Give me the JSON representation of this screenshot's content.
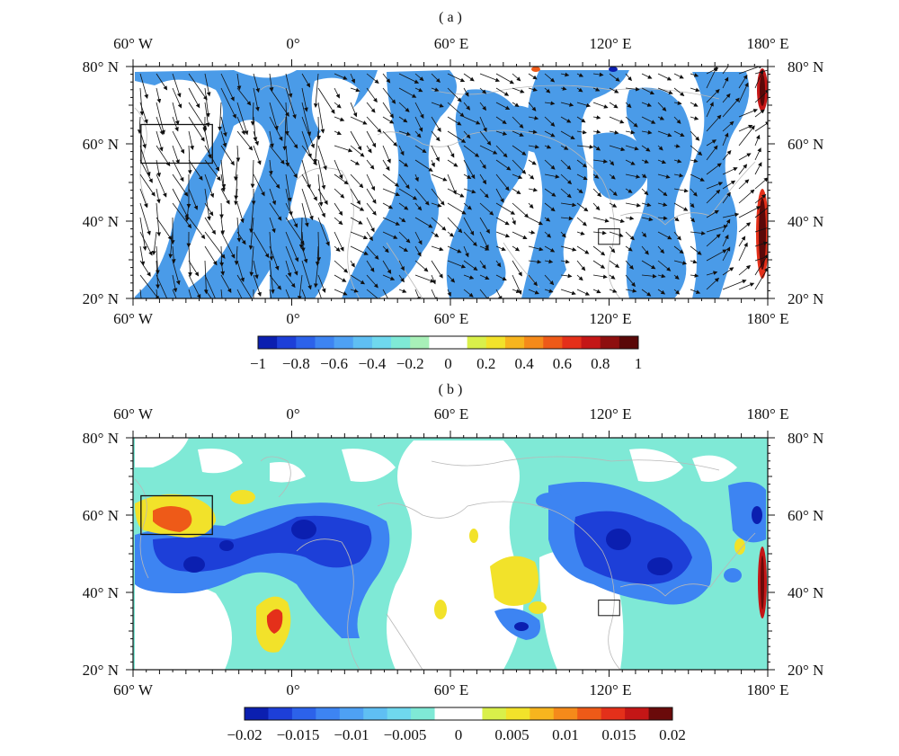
{
  "panels": [
    {
      "label": "( a )",
      "lon_labels": [
        "60° W",
        "0°",
        "60° E",
        "120° E",
        "180° E"
      ],
      "lat_labels": [
        "80° N",
        "60° N",
        "40° N",
        "20° N"
      ],
      "colorbar": {
        "ticks": [
          "-1",
          "-0.8",
          "-0.6",
          "-0.4",
          "-0.2",
          "0",
          "0.2",
          "0.4",
          "0.6",
          "0.8",
          "1"
        ],
        "colors": [
          "#0b1fb0",
          "#1d3fd8",
          "#2c62ea",
          "#3d84f2",
          "#4ea1f4",
          "#5fbff3",
          "#6fd8ee",
          "#7fe9d6",
          "#a8f0b8",
          "#ffffff",
          "#ffffff",
          "#d9f04a",
          "#f2e22a",
          "#f7b51e",
          "#f58a1a",
          "#ee5a18",
          "#e4301a",
          "#c41616",
          "#8e0f0f",
          "#5a0808"
        ]
      },
      "regions": [
        {
          "name": "box-north-atlantic",
          "lon": [
            -57,
            -30
          ],
          "lat": [
            55,
            65
          ]
        },
        {
          "name": "box-china",
          "lon": [
            116,
            124
          ],
          "lat": [
            34,
            38
          ]
        }
      ]
    },
    {
      "label": "( b )",
      "lon_labels": [
        "60° W",
        "0°",
        "60° E",
        "120° E",
        "180° E"
      ],
      "lat_labels": [
        "80° N",
        "60° N",
        "40° N",
        "20° N"
      ],
      "colorbar": {
        "ticks": [
          "-0.02",
          "-0.015",
          "-0.01",
          "-0.005",
          "0",
          "0.005",
          "0.01",
          "0.015",
          "0.02"
        ],
        "colors": [
          "#0b1fb0",
          "#1d3fd8",
          "#2c62ea",
          "#3d84f2",
          "#4ea1f4",
          "#5fbff3",
          "#6fd8ee",
          "#7fe9d6",
          "#ffffff",
          "#ffffff",
          "#d9f04a",
          "#f2e22a",
          "#f7b51e",
          "#f58a1a",
          "#ee5a18",
          "#e4301a",
          "#c41616",
          "#6a0a0a"
        ]
      },
      "regions": [
        {
          "name": "box-north-atlantic",
          "lon": [
            -57,
            -30
          ],
          "lat": [
            55,
            65
          ]
        },
        {
          "name": "box-china",
          "lon": [
            116,
            124
          ],
          "lat": [
            34,
            38
          ]
        }
      ]
    }
  ],
  "map_extent": {
    "lon": [
      -60,
      180
    ],
    "lat": [
      20,
      80
    ]
  }
}
